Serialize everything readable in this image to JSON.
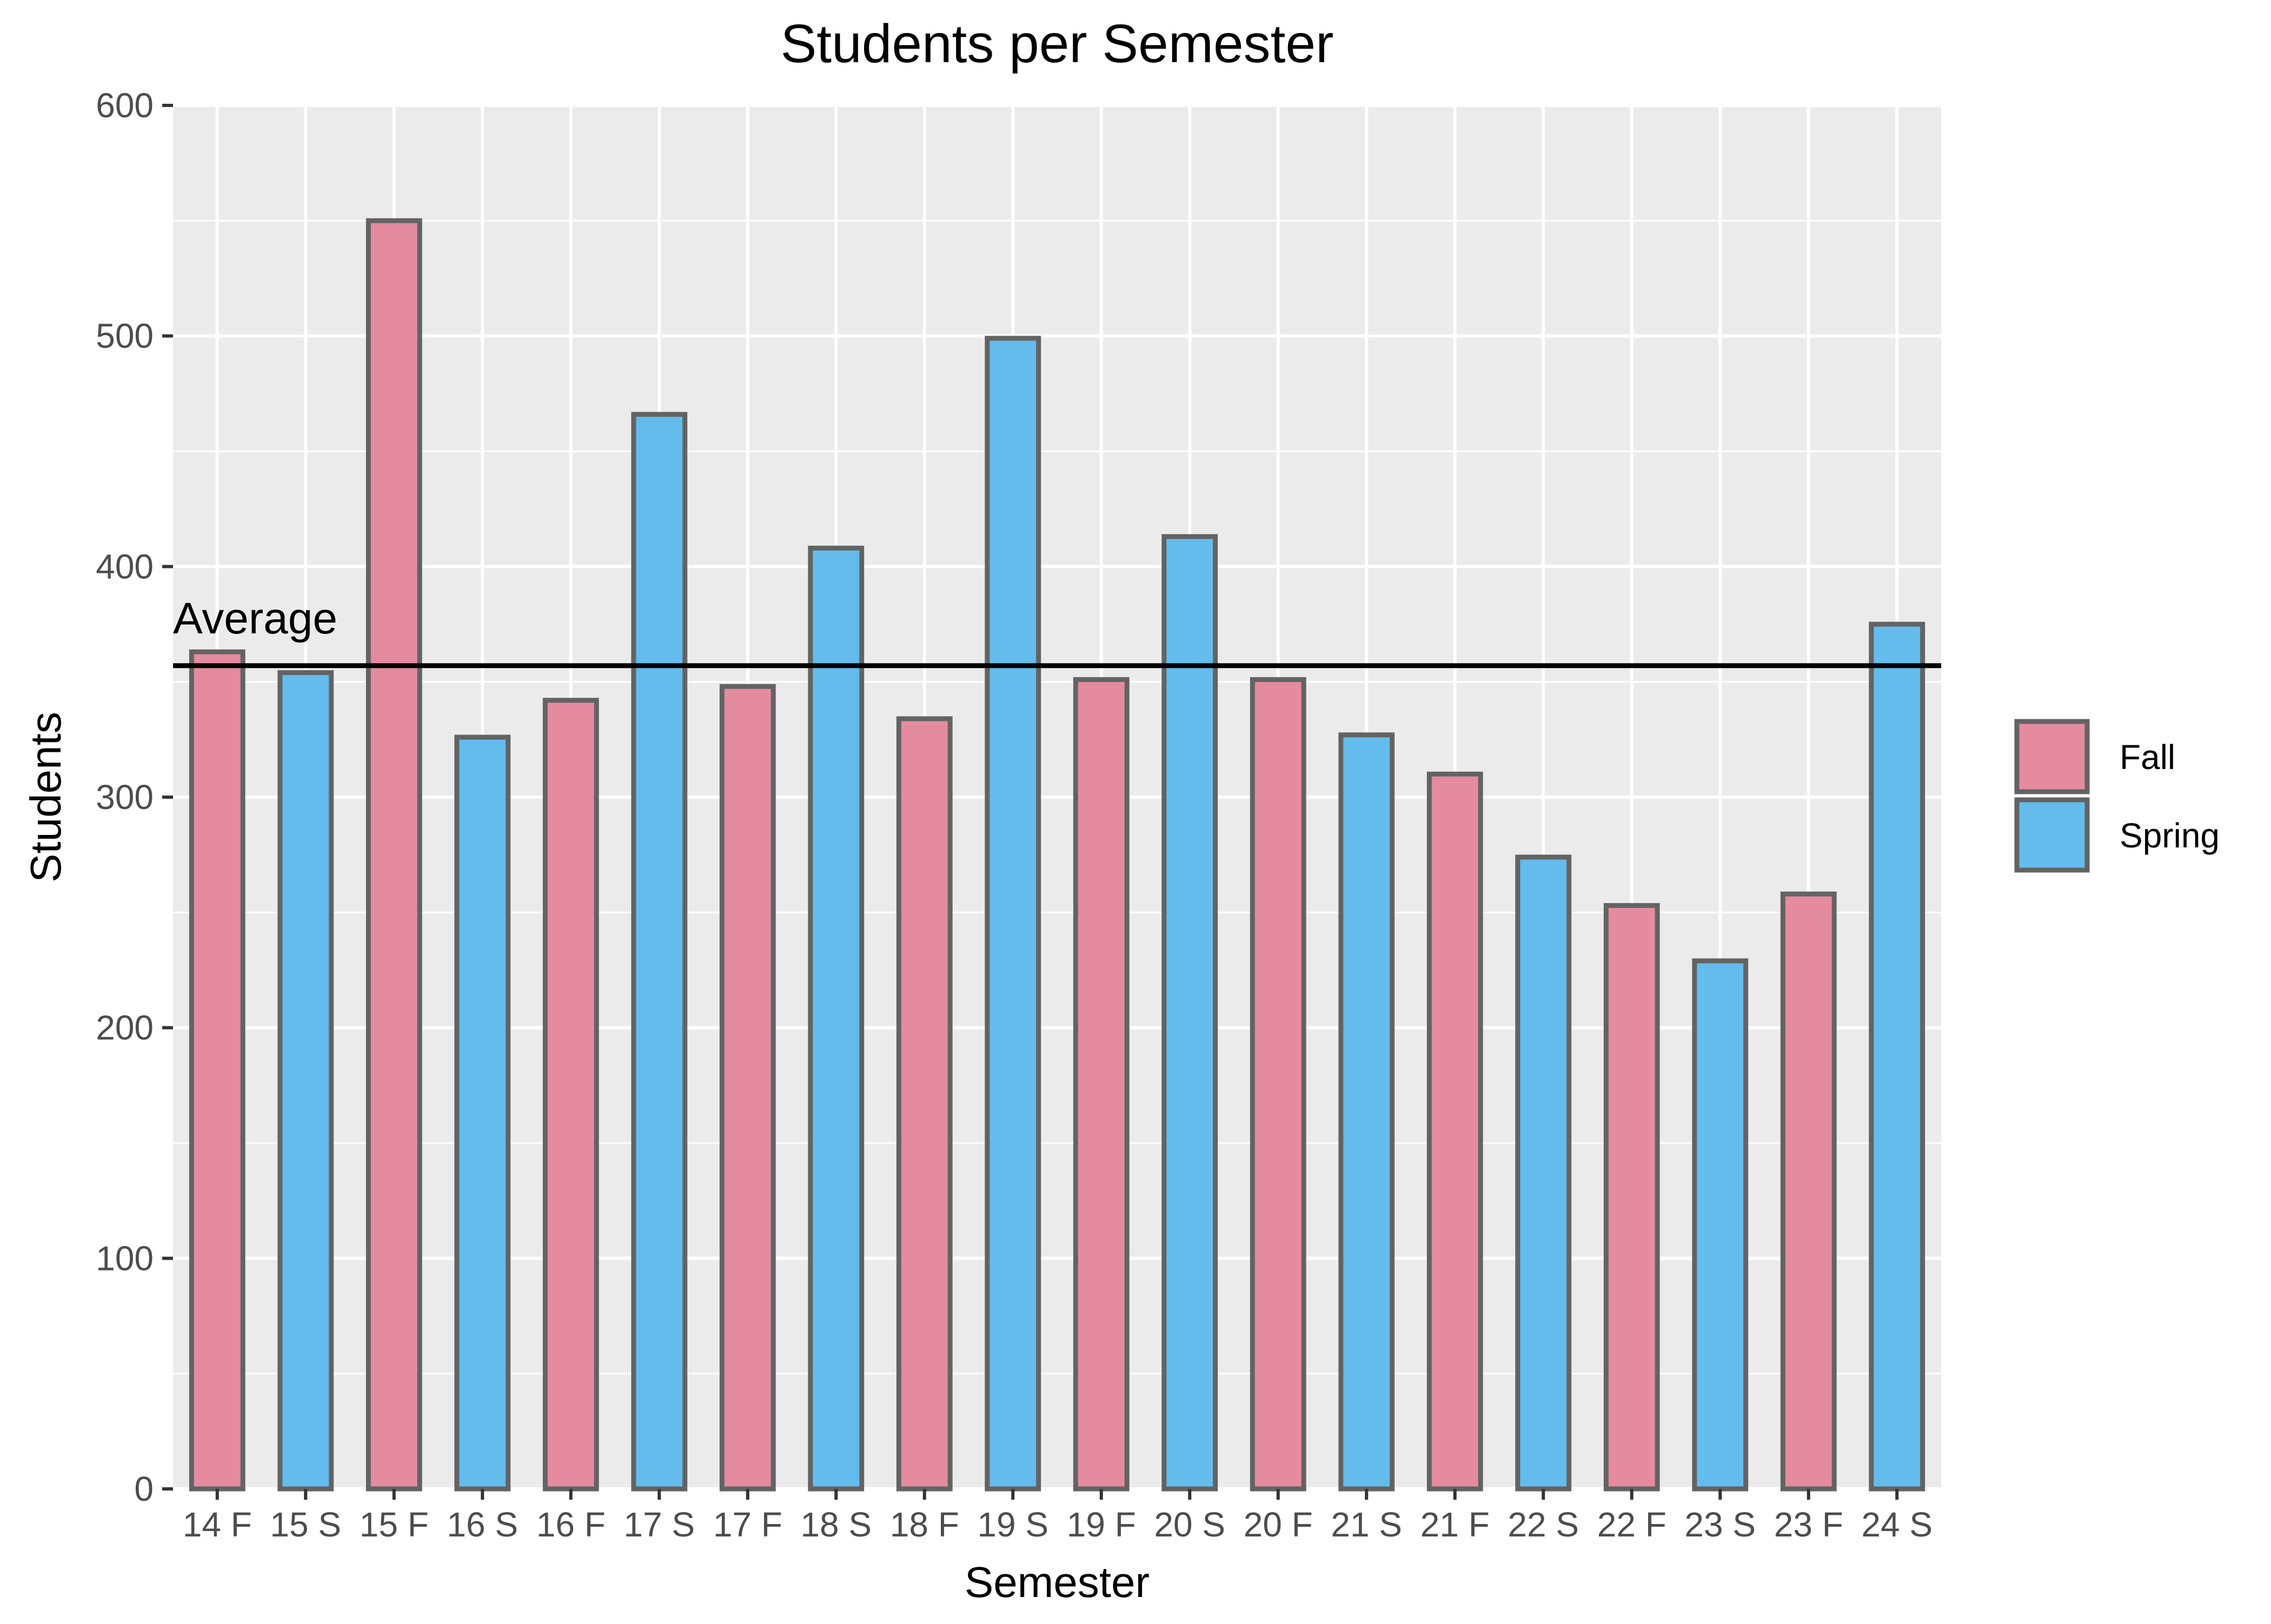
{
  "chart_data": {
    "type": "bar",
    "title": "Students per Semester",
    "xlabel": "Semester",
    "ylabel": "Students",
    "ylim": [
      0,
      600
    ],
    "yticks": [
      0,
      100,
      200,
      300,
      400,
      500,
      600
    ],
    "grid": true,
    "categories": [
      "14 F",
      "15 S",
      "15 F",
      "16 S",
      "16 F",
      "17 S",
      "17 F",
      "18 S",
      "18 F",
      "19 S",
      "19 F",
      "20 S",
      "20 F",
      "21 S",
      "21 F",
      "22 S",
      "22 F",
      "23 S",
      "23 F",
      "24 S"
    ],
    "values": [
      363,
      354,
      550,
      326,
      342,
      466,
      348,
      408,
      334,
      499,
      351,
      413,
      351,
      327,
      310,
      274,
      253,
      229,
      258,
      375
    ],
    "groups": [
      "Fall",
      "Spring",
      "Fall",
      "Spring",
      "Fall",
      "Spring",
      "Fall",
      "Spring",
      "Fall",
      "Spring",
      "Fall",
      "Spring",
      "Fall",
      "Spring",
      "Fall",
      "Spring",
      "Fall",
      "Spring",
      "Fall",
      "Spring"
    ],
    "legend": {
      "placement": "right",
      "entries": [
        {
          "name": "Fall",
          "color": "#e48ba0"
        },
        {
          "name": "Spring",
          "color": "#63bcec"
        }
      ]
    },
    "reference_line": {
      "label": "Average",
      "value": 357
    },
    "colors": {
      "panel_background": "#ebebeb",
      "grid": "#ffffff",
      "bar_outline": "#636363",
      "reference_line": "#000000"
    }
  }
}
